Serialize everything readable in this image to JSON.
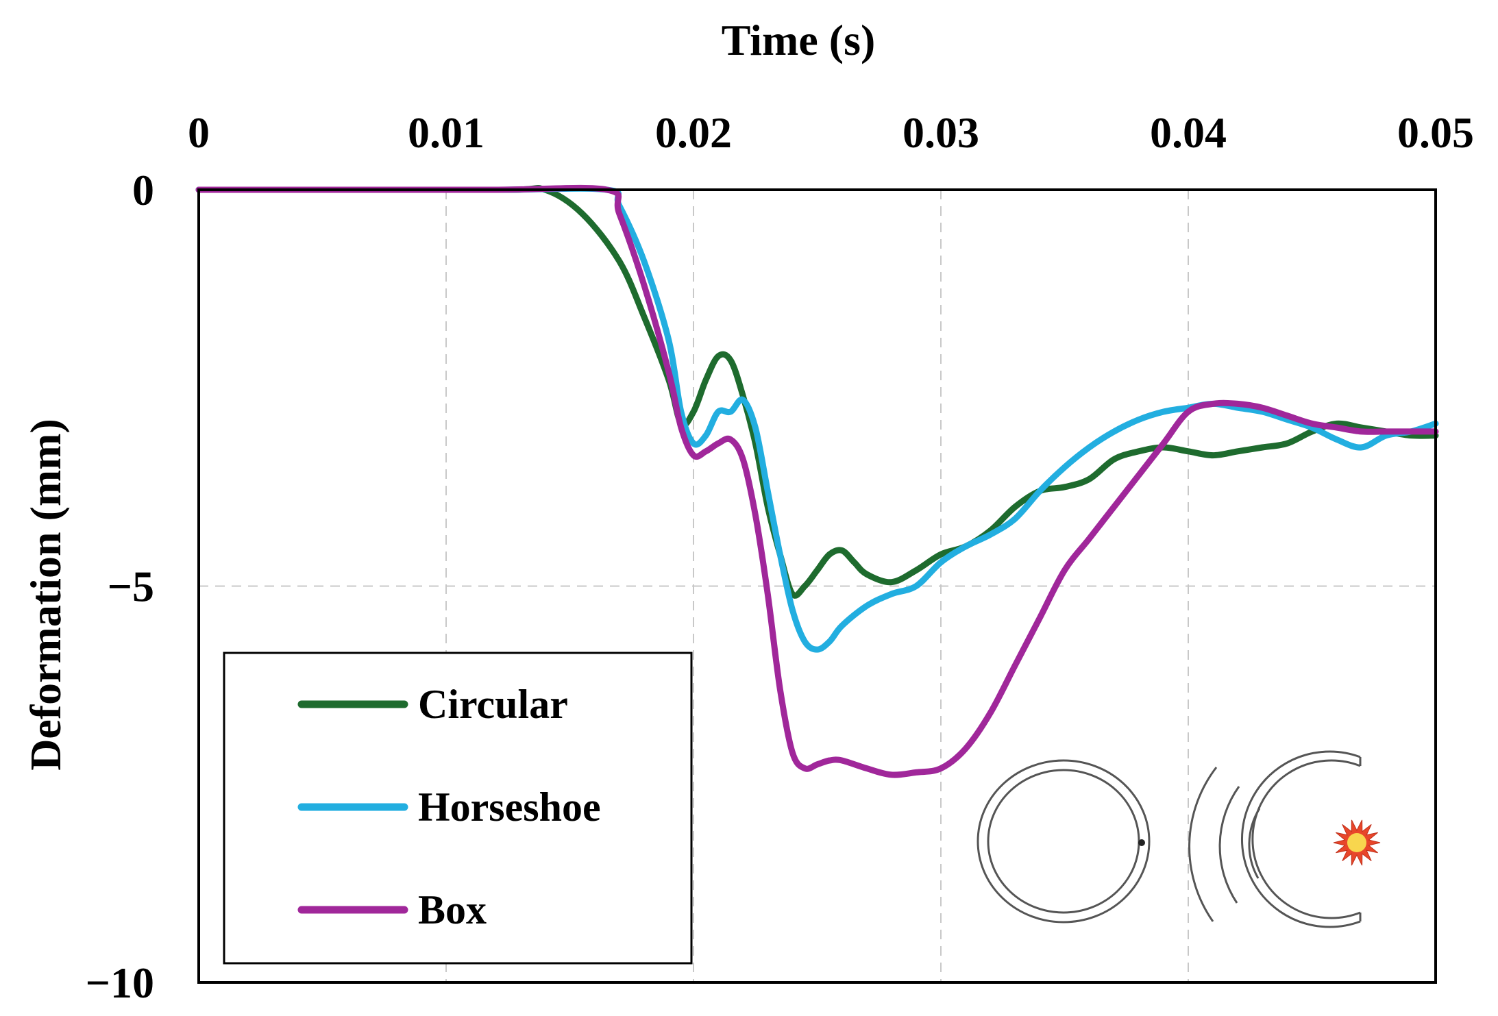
{
  "chart_data": {
    "type": "line",
    "xlabel": "Time (s)",
    "ylabel": "Deformation (mm)",
    "xlim": [
      0,
      0.05
    ],
    "ylim": [
      -10,
      0
    ],
    "x_ticks": [
      "0",
      "0.01",
      "0.02",
      "0.03",
      "0.04",
      "0.05"
    ],
    "x_tick_values": [
      0,
      0.01,
      0.02,
      0.03,
      0.04,
      0.05
    ],
    "y_ticks": [
      "0",
      "−5",
      "−10"
    ],
    "y_tick_values": [
      0,
      -5,
      -10
    ],
    "x_axis_position": "top",
    "grid": true,
    "legend_position": "bottom-left",
    "series": [
      {
        "name": "Circular",
        "color": "#1e6b2e",
        "points": [
          [
            0,
            0
          ],
          [
            0.005,
            0
          ],
          [
            0.0125,
            0
          ],
          [
            0.014,
            0
          ],
          [
            0.0155,
            -0.3
          ],
          [
            0.017,
            -0.9
          ],
          [
            0.018,
            -1.6
          ],
          [
            0.019,
            -2.4
          ],
          [
            0.0195,
            -2.95
          ],
          [
            0.02,
            -2.8
          ],
          [
            0.0205,
            -2.4
          ],
          [
            0.021,
            -2.1
          ],
          [
            0.0215,
            -2.15
          ],
          [
            0.022,
            -2.6
          ],
          [
            0.0225,
            -3.2
          ],
          [
            0.023,
            -4.0
          ],
          [
            0.0235,
            -4.6
          ],
          [
            0.024,
            -5.1
          ],
          [
            0.0245,
            -5.0
          ],
          [
            0.025,
            -4.8
          ],
          [
            0.0255,
            -4.6
          ],
          [
            0.026,
            -4.55
          ],
          [
            0.0265,
            -4.7
          ],
          [
            0.027,
            -4.85
          ],
          [
            0.028,
            -4.95
          ],
          [
            0.029,
            -4.8
          ],
          [
            0.03,
            -4.6
          ],
          [
            0.031,
            -4.5
          ],
          [
            0.032,
            -4.3
          ],
          [
            0.033,
            -4.0
          ],
          [
            0.034,
            -3.8
          ],
          [
            0.035,
            -3.75
          ],
          [
            0.036,
            -3.65
          ],
          [
            0.037,
            -3.4
          ],
          [
            0.038,
            -3.3
          ],
          [
            0.039,
            -3.25
          ],
          [
            0.04,
            -3.3
          ],
          [
            0.041,
            -3.35
          ],
          [
            0.042,
            -3.3
          ],
          [
            0.043,
            -3.25
          ],
          [
            0.044,
            -3.2
          ],
          [
            0.045,
            -3.05
          ],
          [
            0.046,
            -2.95
          ],
          [
            0.047,
            -3.0
          ],
          [
            0.048,
            -3.05
          ],
          [
            0.049,
            -3.1
          ],
          [
            0.05,
            -3.1
          ]
        ]
      },
      {
        "name": "Horseshoe",
        "color": "#22aee0",
        "points": [
          [
            0,
            0
          ],
          [
            0.005,
            0
          ],
          [
            0.012,
            0
          ],
          [
            0.0165,
            0
          ],
          [
            0.017,
            -0.2
          ],
          [
            0.018,
            -0.9
          ],
          [
            0.019,
            -1.9
          ],
          [
            0.0195,
            -2.8
          ],
          [
            0.02,
            -3.2
          ],
          [
            0.0205,
            -3.1
          ],
          [
            0.021,
            -2.8
          ],
          [
            0.0215,
            -2.8
          ],
          [
            0.022,
            -2.65
          ],
          [
            0.0225,
            -3.0
          ],
          [
            0.023,
            -3.8
          ],
          [
            0.0235,
            -4.6
          ],
          [
            0.024,
            -5.3
          ],
          [
            0.0245,
            -5.7
          ],
          [
            0.025,
            -5.8
          ],
          [
            0.0255,
            -5.7
          ],
          [
            0.026,
            -5.5
          ],
          [
            0.027,
            -5.25
          ],
          [
            0.028,
            -5.1
          ],
          [
            0.029,
            -5.0
          ],
          [
            0.03,
            -4.7
          ],
          [
            0.031,
            -4.5
          ],
          [
            0.032,
            -4.35
          ],
          [
            0.033,
            -4.15
          ],
          [
            0.034,
            -3.8
          ],
          [
            0.035,
            -3.5
          ],
          [
            0.036,
            -3.25
          ],
          [
            0.037,
            -3.05
          ],
          [
            0.038,
            -2.9
          ],
          [
            0.039,
            -2.8
          ],
          [
            0.04,
            -2.75
          ],
          [
            0.041,
            -2.7
          ],
          [
            0.042,
            -2.75
          ],
          [
            0.043,
            -2.8
          ],
          [
            0.044,
            -2.9
          ],
          [
            0.045,
            -3.0
          ],
          [
            0.046,
            -3.15
          ],
          [
            0.047,
            -3.25
          ],
          [
            0.048,
            -3.1
          ],
          [
            0.049,
            -3.05
          ],
          [
            0.05,
            -2.95
          ]
        ]
      },
      {
        "name": "Box",
        "color": "#a0279a",
        "points": [
          [
            0,
            0
          ],
          [
            0.005,
            0
          ],
          [
            0.012,
            0
          ],
          [
            0.0165,
            0
          ],
          [
            0.017,
            -0.3
          ],
          [
            0.018,
            -1.2
          ],
          [
            0.019,
            -2.3
          ],
          [
            0.0195,
            -3.0
          ],
          [
            0.02,
            -3.35
          ],
          [
            0.0205,
            -3.3
          ],
          [
            0.021,
            -3.2
          ],
          [
            0.0215,
            -3.15
          ],
          [
            0.022,
            -3.4
          ],
          [
            0.0225,
            -4.1
          ],
          [
            0.023,
            -5.1
          ],
          [
            0.0235,
            -6.3
          ],
          [
            0.024,
            -7.1
          ],
          [
            0.0245,
            -7.3
          ],
          [
            0.025,
            -7.25
          ],
          [
            0.0255,
            -7.2
          ],
          [
            0.026,
            -7.2
          ],
          [
            0.027,
            -7.3
          ],
          [
            0.028,
            -7.38
          ],
          [
            0.029,
            -7.35
          ],
          [
            0.03,
            -7.3
          ],
          [
            0.031,
            -7.05
          ],
          [
            0.032,
            -6.6
          ],
          [
            0.033,
            -6.0
          ],
          [
            0.034,
            -5.4
          ],
          [
            0.035,
            -4.8
          ],
          [
            0.036,
            -4.4
          ],
          [
            0.037,
            -4.0
          ],
          [
            0.038,
            -3.6
          ],
          [
            0.039,
            -3.2
          ],
          [
            0.04,
            -2.8
          ],
          [
            0.041,
            -2.7
          ],
          [
            0.042,
            -2.7
          ],
          [
            0.043,
            -2.75
          ],
          [
            0.044,
            -2.85
          ],
          [
            0.045,
            -2.95
          ],
          [
            0.046,
            -3.0
          ],
          [
            0.047,
            -3.05
          ],
          [
            0.048,
            -3.05
          ],
          [
            0.049,
            -3.05
          ],
          [
            0.05,
            -3.05
          ]
        ]
      }
    ]
  },
  "inset": {
    "description_icons": [
      "tunnel-ring-icon",
      "blast-wave-icon",
      "explosion-icon"
    ],
    "ring_color": "#555555",
    "explosion_color": "#e8462a",
    "explosion_core_color": "#f8d64e"
  }
}
